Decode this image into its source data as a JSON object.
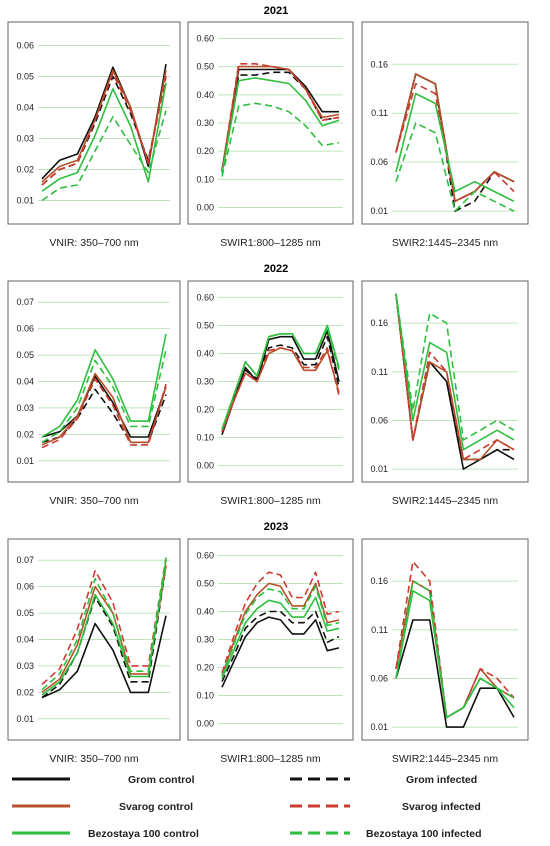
{
  "years": [
    "2021",
    "2022",
    "2023"
  ],
  "legend": {
    "grom_control": "Grom control",
    "grom_infected": "Grom infected",
    "svarog_control": "Svarog control",
    "svarog_infected": "Svarog infected",
    "bez_control": "Bezostaya 100 control",
    "bez_infected": "Bezostaya 100 infected"
  },
  "colors": {
    "grom": "#111111",
    "svarog": "#b5522a",
    "svarog_infected": "#cc3b30",
    "bez": "#2fbf3f"
  },
  "chart_data": [
    {
      "type": "line",
      "year": "2021",
      "xlabel": "VNIR: 350–700 nm",
      "yticks": [
        "0.01",
        "0.02",
        "0.03",
        "0.04",
        "0.05",
        "0.06"
      ],
      "ylim": [
        0.005,
        0.065
      ],
      "grid": true,
      "series": [
        {
          "key": "grom_control",
          "values": [
            0.017,
            0.023,
            0.025,
            0.037,
            0.053,
            0.04,
            0.021,
            0.054
          ]
        },
        {
          "key": "grom_infected",
          "values": [
            0.015,
            0.02,
            0.022,
            0.035,
            0.05,
            0.038,
            0.023,
            0.05
          ]
        },
        {
          "key": "svarog_control",
          "values": [
            0.016,
            0.021,
            0.023,
            0.036,
            0.052,
            0.04,
            0.022,
            0.052
          ]
        },
        {
          "key": "svarog_infected",
          "values": [
            0.015,
            0.02,
            0.022,
            0.036,
            0.051,
            0.039,
            0.022,
            0.05
          ]
        },
        {
          "key": "bez_control",
          "values": [
            0.013,
            0.017,
            0.019,
            0.031,
            0.046,
            0.034,
            0.016,
            0.048
          ]
        },
        {
          "key": "bez_infected",
          "values": [
            0.01,
            0.014,
            0.015,
            0.026,
            0.037,
            0.028,
            0.019,
            0.039
          ]
        }
      ]
    },
    {
      "type": "line",
      "year": "2021",
      "xlabel": "SWIR1:800–1285 nm",
      "yticks": [
        "0.00",
        "0.10",
        "0.20",
        "0.30",
        "0.40",
        "0.50",
        "0.60"
      ],
      "ylim": [
        -0.03,
        0.63
      ],
      "grid": true,
      "series": [
        {
          "key": "grom_control",
          "values": [
            0.13,
            0.49,
            0.49,
            0.49,
            0.49,
            0.43,
            0.34,
            0.34
          ]
        },
        {
          "key": "grom_infected",
          "values": [
            0.13,
            0.47,
            0.47,
            0.48,
            0.48,
            0.42,
            0.31,
            0.32
          ]
        },
        {
          "key": "svarog_control",
          "values": [
            0.13,
            0.5,
            0.5,
            0.5,
            0.49,
            0.42,
            0.32,
            0.33
          ]
        },
        {
          "key": "svarog_infected",
          "values": [
            0.13,
            0.51,
            0.51,
            0.5,
            0.49,
            0.42,
            0.31,
            0.32
          ]
        },
        {
          "key": "bez_control",
          "values": [
            0.12,
            0.45,
            0.46,
            0.45,
            0.44,
            0.38,
            0.29,
            0.31
          ]
        },
        {
          "key": "bez_infected",
          "values": [
            0.11,
            0.36,
            0.37,
            0.36,
            0.34,
            0.29,
            0.22,
            0.23
          ]
        }
      ]
    },
    {
      "type": "line",
      "year": "2021",
      "xlabel": "SWIR2:1445–2345 nm",
      "yticks": [
        "0.01",
        "0.06",
        "0.11",
        "0.16"
      ],
      "ylim": [
        0.005,
        0.195
      ],
      "grid": true,
      "series": [
        {
          "key": "grom_control",
          "values": [
            0.07,
            0.15,
            0.14,
            0.02,
            0.03,
            0.05,
            0.04
          ]
        },
        {
          "key": "grom_infected",
          "values": [
            0.07,
            0.15,
            0.14,
            0.01,
            0.02,
            0.05,
            0.04
          ]
        },
        {
          "key": "svarog_control",
          "values": [
            0.07,
            0.15,
            0.14,
            0.02,
            0.03,
            0.05,
            0.04
          ]
        },
        {
          "key": "svarog_infected",
          "values": [
            0.07,
            0.14,
            0.13,
            0.02,
            0.03,
            0.05,
            0.03
          ]
        },
        {
          "key": "bez_control",
          "values": [
            0.05,
            0.13,
            0.12,
            0.03,
            0.04,
            0.03,
            0.02
          ]
        },
        {
          "key": "bez_infected",
          "values": [
            0.04,
            0.1,
            0.09,
            0.01,
            0.03,
            0.02,
            0.01
          ]
        }
      ]
    },
    {
      "type": "line",
      "year": "2022",
      "xlabel": "VNIR: 350–700 nm",
      "yticks": [
        "0.01",
        "0.02",
        "0.03",
        "0.04",
        "0.05",
        "0.06",
        "0.07"
      ],
      "ylim": [
        0.005,
        0.075
      ],
      "grid": true,
      "series": [
        {
          "key": "grom_control",
          "values": [
            0.019,
            0.021,
            0.027,
            0.042,
            0.032,
            0.019,
            0.019,
            0.038
          ]
        },
        {
          "key": "grom_infected",
          "values": [
            0.017,
            0.019,
            0.026,
            0.037,
            0.028,
            0.017,
            0.017,
            0.035
          ]
        },
        {
          "key": "svarog_control",
          "values": [
            0.016,
            0.019,
            0.027,
            0.043,
            0.034,
            0.017,
            0.017,
            0.038
          ]
        },
        {
          "key": "svarog_infected",
          "values": [
            0.015,
            0.018,
            0.026,
            0.041,
            0.031,
            0.016,
            0.016,
            0.039
          ]
        },
        {
          "key": "bez_control",
          "values": [
            0.019,
            0.023,
            0.033,
            0.052,
            0.041,
            0.025,
            0.025,
            0.058
          ]
        },
        {
          "key": "bez_infected",
          "values": [
            0.017,
            0.021,
            0.03,
            0.048,
            0.038,
            0.023,
            0.023,
            0.052
          ]
        }
      ]
    },
    {
      "type": "line",
      "year": "2022",
      "xlabel": "SWIR1:800–1285 nm",
      "yticks": [
        "0.00",
        "0.10",
        "0.20",
        "0.30",
        "0.40",
        "0.50",
        "0.60"
      ],
      "ylim": [
        -0.03,
        0.63
      ],
      "grid": true,
      "series": [
        {
          "key": "grom_control",
          "values": [
            0.11,
            0.23,
            0.35,
            0.3,
            0.45,
            0.46,
            0.46,
            0.38,
            0.38,
            0.48,
            0.3
          ]
        },
        {
          "key": "grom_infected",
          "values": [
            0.12,
            0.24,
            0.34,
            0.31,
            0.42,
            0.43,
            0.42,
            0.36,
            0.36,
            0.46,
            0.28
          ]
        },
        {
          "key": "svarog_control",
          "values": [
            0.12,
            0.23,
            0.33,
            0.3,
            0.4,
            0.42,
            0.41,
            0.34,
            0.34,
            0.41,
            0.26
          ]
        },
        {
          "key": "svarog_infected",
          "values": [
            0.12,
            0.23,
            0.33,
            0.3,
            0.41,
            0.42,
            0.41,
            0.35,
            0.35,
            0.42,
            0.25
          ]
        },
        {
          "key": "bez_control",
          "values": [
            0.13,
            0.25,
            0.37,
            0.32,
            0.46,
            0.47,
            0.47,
            0.4,
            0.4,
            0.5,
            0.35
          ]
        },
        {
          "key": "bez_infected",
          "values": [
            0.13,
            0.25,
            0.37,
            0.32,
            0.46,
            0.47,
            0.47,
            0.4,
            0.4,
            0.49,
            0.34
          ]
        }
      ]
    },
    {
      "type": "line",
      "year": "2022",
      "xlabel": "SWIR2:1445–2345 nm",
      "yticks": [
        "0.01",
        "0.06",
        "0.11",
        "0.16"
      ],
      "ylim": [
        0.005,
        0.195
      ],
      "grid": true,
      "series": [
        {
          "key": "grom_control",
          "values": [
            0.19,
            0.04,
            0.12,
            0.1,
            0.01,
            0.02,
            0.03,
            0.02
          ]
        },
        {
          "key": "grom_infected",
          "values": [
            0.19,
            0.04,
            0.12,
            0.1,
            0.02,
            0.02,
            0.03,
            0.03
          ]
        },
        {
          "key": "svarog_control",
          "values": [
            0.19,
            0.04,
            0.12,
            0.11,
            0.02,
            0.02,
            0.04,
            0.03
          ]
        },
        {
          "key": "svarog_infected",
          "values": [
            0.19,
            0.04,
            0.13,
            0.11,
            0.02,
            0.03,
            0.04,
            0.03
          ]
        },
        {
          "key": "bez_control",
          "values": [
            0.19,
            0.06,
            0.14,
            0.13,
            0.03,
            0.04,
            0.05,
            0.04
          ]
        },
        {
          "key": "bez_infected",
          "values": [
            0.19,
            0.07,
            0.17,
            0.16,
            0.04,
            0.05,
            0.06,
            0.05
          ]
        }
      ]
    },
    {
      "type": "line",
      "year": "2023",
      "xlabel": "VNIR: 350–700 nm",
      "yticks": [
        "0.01",
        "0.02",
        "0.03",
        "0.04",
        "0.05",
        "0.06",
        "0.07"
      ],
      "ylim": [
        0.005,
        0.075
      ],
      "grid": true,
      "series": [
        {
          "key": "grom_control",
          "values": [
            0.018,
            0.021,
            0.028,
            0.046,
            0.036,
            0.02,
            0.02,
            0.049
          ]
        },
        {
          "key": "grom_infected",
          "values": [
            0.018,
            0.023,
            0.035,
            0.056,
            0.045,
            0.024,
            0.024,
            0.068
          ]
        },
        {
          "key": "svarog_control",
          "values": [
            0.02,
            0.025,
            0.038,
            0.06,
            0.05,
            0.027,
            0.027,
            0.068
          ]
        },
        {
          "key": "svarog_infected",
          "values": [
            0.023,
            0.029,
            0.044,
            0.066,
            0.054,
            0.03,
            0.03,
            0.071
          ]
        },
        {
          "key": "bez_control",
          "values": [
            0.019,
            0.024,
            0.035,
            0.057,
            0.046,
            0.026,
            0.026,
            0.07
          ]
        },
        {
          "key": "bez_infected",
          "values": [
            0.021,
            0.027,
            0.04,
            0.063,
            0.05,
            0.028,
            0.028,
            0.071
          ]
        }
      ]
    },
    {
      "type": "line",
      "year": "2023",
      "xlabel": "SWIR1:800–1285 nm",
      "yticks": [
        "0.00",
        "0.10",
        "0.20",
        "0.30",
        "0.40",
        "0.50",
        "0.60"
      ],
      "ylim": [
        -0.03,
        0.63
      ],
      "grid": true,
      "series": [
        {
          "key": "grom_control",
          "values": [
            0.13,
            0.22,
            0.31,
            0.36,
            0.38,
            0.37,
            0.32,
            0.32,
            0.37,
            0.26,
            0.27
          ]
        },
        {
          "key": "grom_infected",
          "values": [
            0.15,
            0.24,
            0.34,
            0.38,
            0.4,
            0.4,
            0.36,
            0.36,
            0.4,
            0.29,
            0.31
          ]
        },
        {
          "key": "svarog_control",
          "values": [
            0.17,
            0.29,
            0.4,
            0.46,
            0.5,
            0.49,
            0.42,
            0.42,
            0.5,
            0.36,
            0.37
          ]
        },
        {
          "key": "svarog_infected",
          "values": [
            0.18,
            0.31,
            0.43,
            0.5,
            0.54,
            0.53,
            0.45,
            0.45,
            0.54,
            0.39,
            0.4
          ]
        },
        {
          "key": "bez_control",
          "values": [
            0.16,
            0.26,
            0.36,
            0.41,
            0.44,
            0.43,
            0.38,
            0.38,
            0.45,
            0.33,
            0.34
          ]
        },
        {
          "key": "bez_infected",
          "values": [
            0.17,
            0.28,
            0.39,
            0.45,
            0.48,
            0.47,
            0.41,
            0.41,
            0.49,
            0.35,
            0.36
          ]
        }
      ]
    },
    {
      "type": "line",
      "year": "2023",
      "xlabel": "SWIR2:1445–2345 nm",
      "yticks": [
        "0.01",
        "0.06",
        "0.11",
        "0.16"
      ],
      "ylim": [
        0.005,
        0.195
      ],
      "grid": true,
      "series": [
        {
          "key": "grom_control",
          "values": [
            0.06,
            0.12,
            0.12,
            0.01,
            0.01,
            0.05,
            0.05,
            0.02
          ]
        },
        {
          "key": "grom_infected",
          "values": [
            0.07,
            0.16,
            0.15,
            0.02,
            0.03,
            0.06,
            0.05,
            0.04
          ]
        },
        {
          "key": "svarog_control",
          "values": [
            0.07,
            0.16,
            0.15,
            0.02,
            0.03,
            0.07,
            0.05,
            0.04
          ]
        },
        {
          "key": "svarog_infected",
          "values": [
            0.07,
            0.18,
            0.16,
            0.02,
            0.03,
            0.07,
            0.06,
            0.04
          ]
        },
        {
          "key": "bez_control",
          "values": [
            0.06,
            0.15,
            0.14,
            0.02,
            0.03,
            0.06,
            0.05,
            0.03
          ]
        },
        {
          "key": "bez_infected",
          "values": [
            0.06,
            0.16,
            0.15,
            0.02,
            0.03,
            0.06,
            0.05,
            0.04
          ]
        }
      ]
    }
  ]
}
